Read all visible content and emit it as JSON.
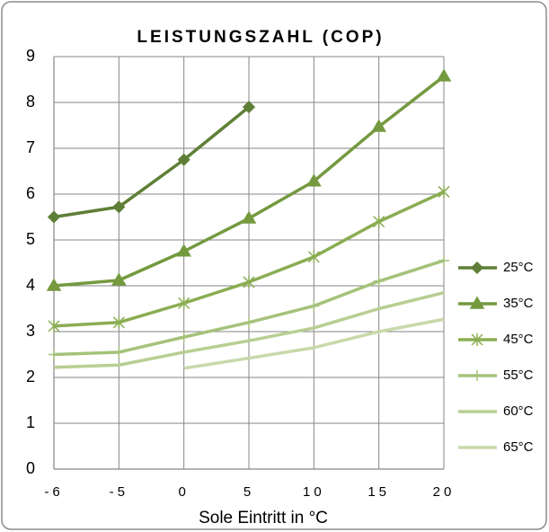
{
  "chart_data": {
    "type": "line",
    "title": "LEISTUNGSZAHL (COP)",
    "x_label": "Sole Eintritt in °C",
    "categories": [
      "-6",
      "-5",
      "0",
      "5",
      "10",
      "15",
      "20"
    ],
    "ylim": [
      0,
      9
    ],
    "yticks": [
      0,
      1,
      2,
      3,
      4,
      5,
      6,
      7,
      8,
      9
    ],
    "grid": true,
    "legend": "right",
    "series": [
      {
        "name": "25°C",
        "color": "#5f7f37",
        "marker": "diamond",
        "values": [
          5.5,
          5.72,
          6.75,
          7.9,
          null,
          null,
          null
        ]
      },
      {
        "name": "35°C",
        "color": "#74993f",
        "marker": "triangle",
        "values": [
          4.0,
          4.12,
          4.75,
          5.47,
          6.28,
          7.47,
          8.57
        ]
      },
      {
        "name": "45°C",
        "color": "#8aad52",
        "marker": "star",
        "values": [
          3.12,
          3.2,
          3.62,
          4.08,
          4.63,
          5.4,
          6.05
        ]
      },
      {
        "name": "55°C",
        "color": "#a5c27a",
        "marker": "plus",
        "values": [
          2.5,
          2.55,
          2.88,
          3.2,
          3.56,
          4.1,
          4.55
        ]
      },
      {
        "name": "60°C",
        "color": "#b7cf92",
        "marker": "none",
        "values": [
          2.22,
          2.27,
          2.55,
          2.8,
          3.08,
          3.5,
          3.85
        ]
      },
      {
        "name": "65°C",
        "color": "#c8d9ab",
        "marker": "none",
        "values": [
          null,
          null,
          2.2,
          2.42,
          2.65,
          3.0,
          3.27
        ]
      }
    ]
  }
}
